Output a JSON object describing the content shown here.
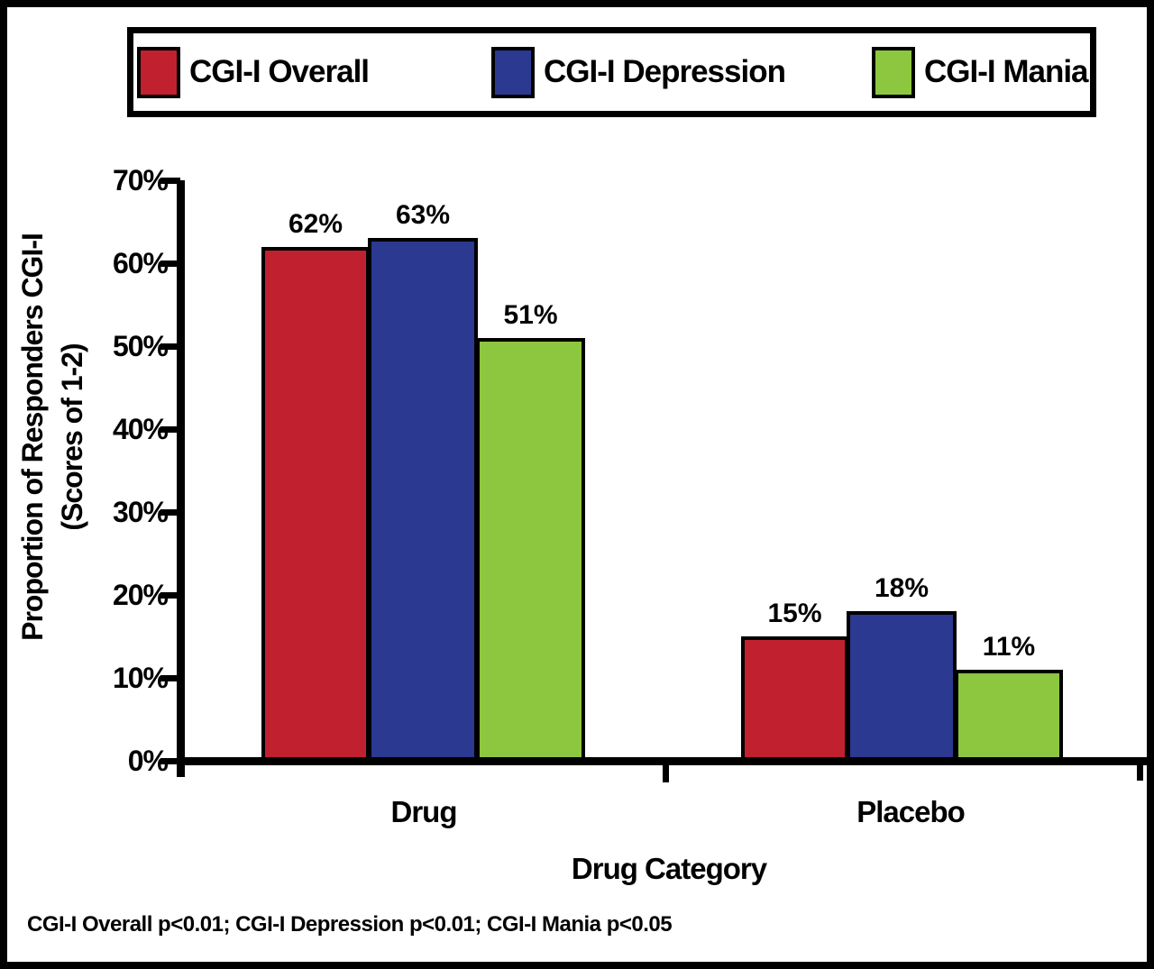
{
  "chart_data": {
    "type": "bar",
    "categories": [
      "Drug",
      "Placebo"
    ],
    "series": [
      {
        "name": "CGI-I Overall",
        "color": "#C1202F",
        "values": [
          62,
          15
        ]
      },
      {
        "name": "CGI-I Depression",
        "color": "#2B3990",
        "values": [
          63,
          18
        ]
      },
      {
        "name": "CGI-I Mania",
        "color": "#8DC63F",
        "values": [
          51,
          11
        ]
      }
    ],
    "bars": [
      {
        "group": 0,
        "series": 0,
        "value": 62,
        "label": "62%"
      },
      {
        "group": 0,
        "series": 1,
        "value": 63,
        "label": "63%"
      },
      {
        "group": 0,
        "series": 2,
        "value": 51,
        "label": "51%"
      },
      {
        "group": 1,
        "series": 0,
        "value": 15,
        "label": "15%"
      },
      {
        "group": 1,
        "series": 1,
        "value": 18,
        "label": "18%"
      },
      {
        "group": 1,
        "series": 2,
        "value": 11,
        "label": "11%"
      }
    ],
    "xlabel": "Drug Category",
    "ylabel": "Proportion of Responders CGI-I (Scores of 1-2)",
    "ylabel_lines": {
      "0": "Proportion of Responders CGI-I",
      "1": "(Scores of 1-2)"
    },
    "ylim": [
      0,
      70
    ],
    "ytick_step": 10,
    "y_tick_labels": [
      "70%",
      "60%",
      "50%",
      "40%",
      "30%",
      "20%",
      "10%",
      "0%"
    ],
    "grid": false,
    "legend_position": "top",
    "footnote": "CGI-I Overall p<0.01; CGI-I Depression p<0.01; CGI-I Mania p<0.05",
    "axis_color": "#000000",
    "background_color": "#FFFFFF"
  }
}
